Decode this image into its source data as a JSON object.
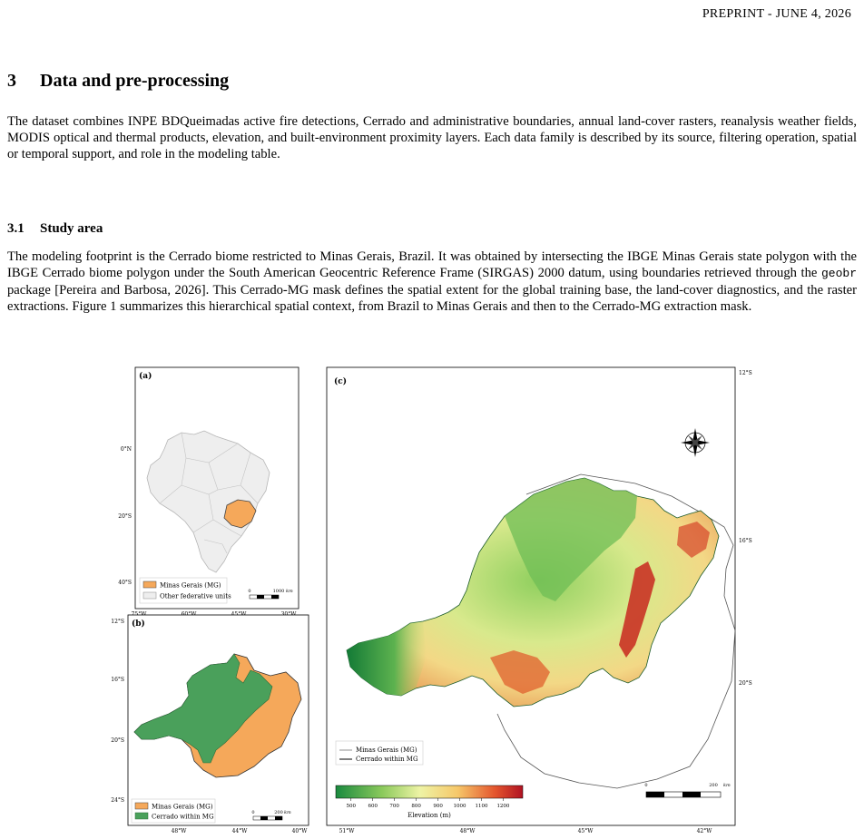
{
  "header": "PREPRINT - JUNE 4, 2026",
  "section": {
    "number": "3",
    "title": "Data and pre-processing"
  },
  "intro": "The dataset combines INPE BDQueimadas active fire detections, Cerrado and administrative boundaries, annual land-cover rasters, reanalysis weather fields, MODIS optical and thermal products, elevation, and built-environment proximity layers. Each data family is described by its source, filtering operation, spatial or temporal support, and role in the modeling table.",
  "subsection": {
    "number": "3.1",
    "title": "Study area"
  },
  "para2": {
    "before_code": "The modeling footprint is the Cerrado biome restricted to Minas Gerais, Brazil. It was obtained by intersecting the IBGE Minas Gerais state polygon with the IBGE Cerrado biome polygon under the South American Geocentric Reference Frame (SIRGAS) 2000 datum, using boundaries retrieved through the ",
    "code": "geobr",
    "after_code": " package [Pereira and Barbosa, 2026]. This Cerrado-MG mask defines the spatial extent for the global training base, the land-cover diagnostics, and the raster extractions. Figure 1 summarizes this hierarchical spatial context, from Brazil to Minas Gerais and then to the Cerrado-MG extraction mask."
  },
  "figure": {
    "colors": {
      "mg": "#f5a85a",
      "cerrado": "#4aa05b",
      "other": "#eeeeee"
    },
    "panel_a": {
      "label": "(a)",
      "legend": [
        "Minas Gerais (MG)",
        "Other federative units"
      ],
      "scale": [
        "0",
        "1000",
        "km"
      ],
      "lat_ticks": [
        "0°N",
        "20°S",
        "40°S"
      ],
      "lon_ticks": [
        "75°W",
        "60°W",
        "45°W",
        "30°W"
      ]
    },
    "panel_b": {
      "label": "(b)",
      "legend": [
        "Minas Gerais (MG)",
        "Cerrado within MG"
      ],
      "scale": [
        "0",
        "200",
        "km"
      ],
      "lat_ticks": [
        "12°S",
        "16°S",
        "20°S",
        "24°S"
      ],
      "lon_ticks": [
        "48°W",
        "44°W",
        "40°W"
      ]
    },
    "panel_c": {
      "label": "(c)",
      "legend": [
        "Minas Gerais (MG)",
        "Cerrado within MG"
      ],
      "scale": [
        "0",
        "200",
        "km"
      ],
      "lat_ticks": [
        "12°S",
        "16°S",
        "20°S"
      ],
      "lon_ticks": [
        "51°W",
        "48°W",
        "45°W",
        "42°W"
      ],
      "colorbar_ticks": [
        "500",
        "600",
        "700",
        "800",
        "900",
        "1000",
        "1100",
        "1200"
      ],
      "colorbar_label": "Elevation (m)",
      "compass_icon": "compass-rose-icon"
    }
  }
}
